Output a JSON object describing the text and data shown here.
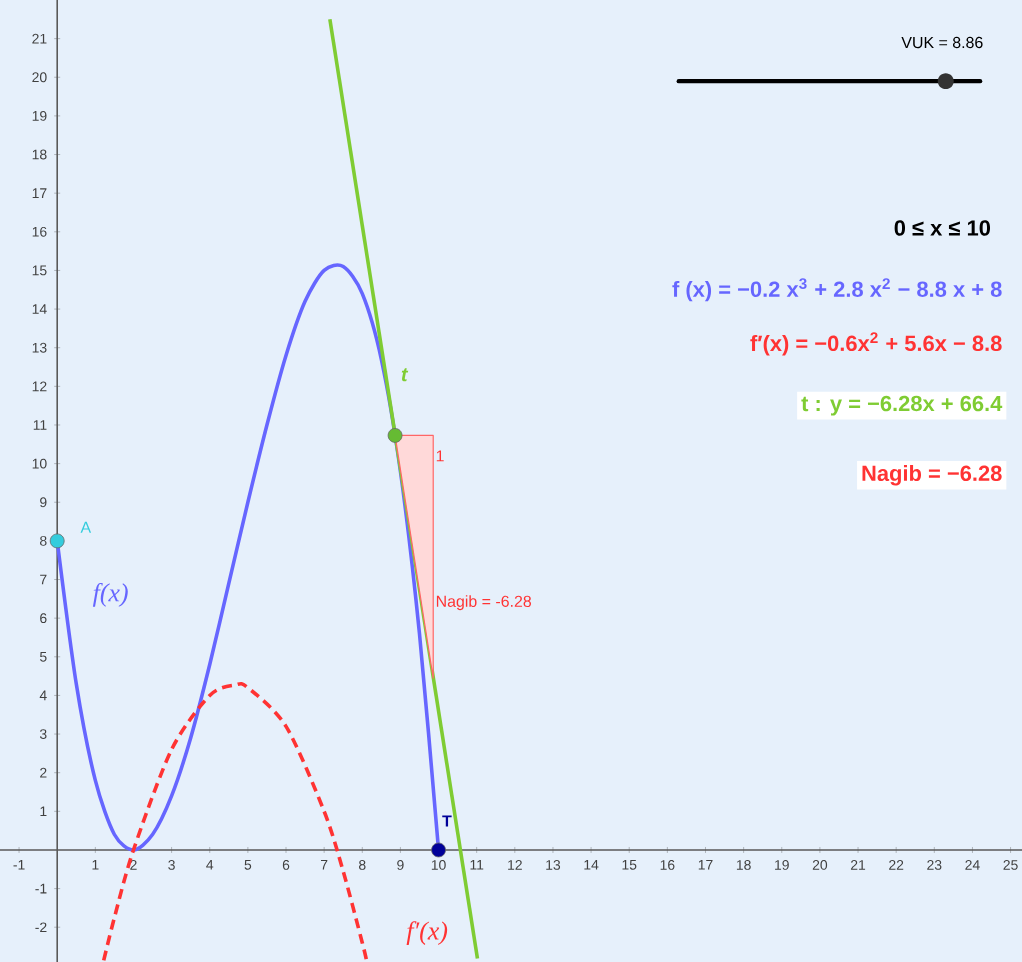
{
  "chart_data": {
    "type": "line",
    "xlim": [
      -1.5,
      25.3
    ],
    "ylim": [
      -2.9,
      22
    ],
    "xticks": [
      -1,
      1,
      2,
      3,
      4,
      5,
      6,
      7,
      8,
      9,
      10,
      11,
      12,
      13,
      14,
      15,
      16,
      17,
      18,
      19,
      20,
      21,
      22,
      23,
      24,
      25
    ],
    "yticks": [
      -2,
      -1,
      1,
      2,
      3,
      4,
      5,
      6,
      7,
      8,
      9,
      10,
      11,
      12,
      13,
      14,
      15,
      16,
      17,
      18,
      19,
      20,
      21
    ],
    "grid": false,
    "series": [
      {
        "name": "f(x)",
        "color": "#6666ff",
        "line_style": "solid",
        "x": [
          0,
          0.5,
          1,
          1.5,
          2,
          2.5,
          3,
          3.5,
          4,
          4.5,
          5,
          5.5,
          6,
          6.5,
          7,
          7.5,
          8,
          8.5,
          9,
          9.5,
          10
        ],
        "values": [
          8,
          4.3,
          1.8,
          0.4,
          0,
          0.4,
          1.4,
          2.9,
          4.8,
          6.9,
          9,
          11,
          12.8,
          14.2,
          15,
          15.1,
          14.4,
          12.7,
          9.8,
          5.6,
          0
        ]
      },
      {
        "name": "f′(x)",
        "color": "#ff3333",
        "line_style": "dashed",
        "x": [
          1.22,
          1.5,
          2,
          3,
          4,
          4.67,
          5,
          6,
          7,
          7.5,
          8,
          8.11
        ],
        "values": [
          -2.86,
          -1.75,
          0,
          2.6,
          4,
          4.27,
          4.2,
          3.2,
          1,
          -0.55,
          -2.4,
          -2.85
        ]
      },
      {
        "name": "t",
        "color": "#7fcc33",
        "line_style": "solid",
        "x": [
          7.15,
          11.02
        ],
        "values": [
          21.5,
          -2.81
        ]
      },
      {
        "color": "#ff6666",
        "type": "area",
        "x": [
          8.86,
          9.86,
          9.86,
          8.86
        ],
        "values": [
          10.73,
          10.73,
          4.45,
          10.73
        ]
      },
      {
        "name": "A",
        "color": "#33ccdd",
        "type": "scatter",
        "marker": "circle",
        "x": [
          0
        ],
        "values": [
          8
        ]
      },
      {
        "name": "T",
        "color": "#000099",
        "type": "scatter",
        "marker": "circle",
        "x": [
          10
        ],
        "values": [
          0
        ]
      },
      {
        "color": "#66bb33",
        "type": "scatter",
        "marker": "circle",
        "x": [
          8.86
        ],
        "values": [
          10.73
        ]
      }
    ],
    "annotations": [
      "VUK = 8.86",
      "0 ≤ x ≤ 10",
      "f (x) = −0.2 x$^{3}$ + 2.8 x$^{2}$ − 8.8 x + 8",
      "f′(x) = −0.6x$^{2}$ + 5.6x − 8.8",
      "t : y = −6.28x + 66.4",
      "Nagib = −6.28",
      {
        "text": "1",
        "x": 9.86,
        "y": 10.2
      },
      {
        "text": "Nagib = -6.28",
        "x": 9.86,
        "y": 6.4
      }
    ]
  }
}
